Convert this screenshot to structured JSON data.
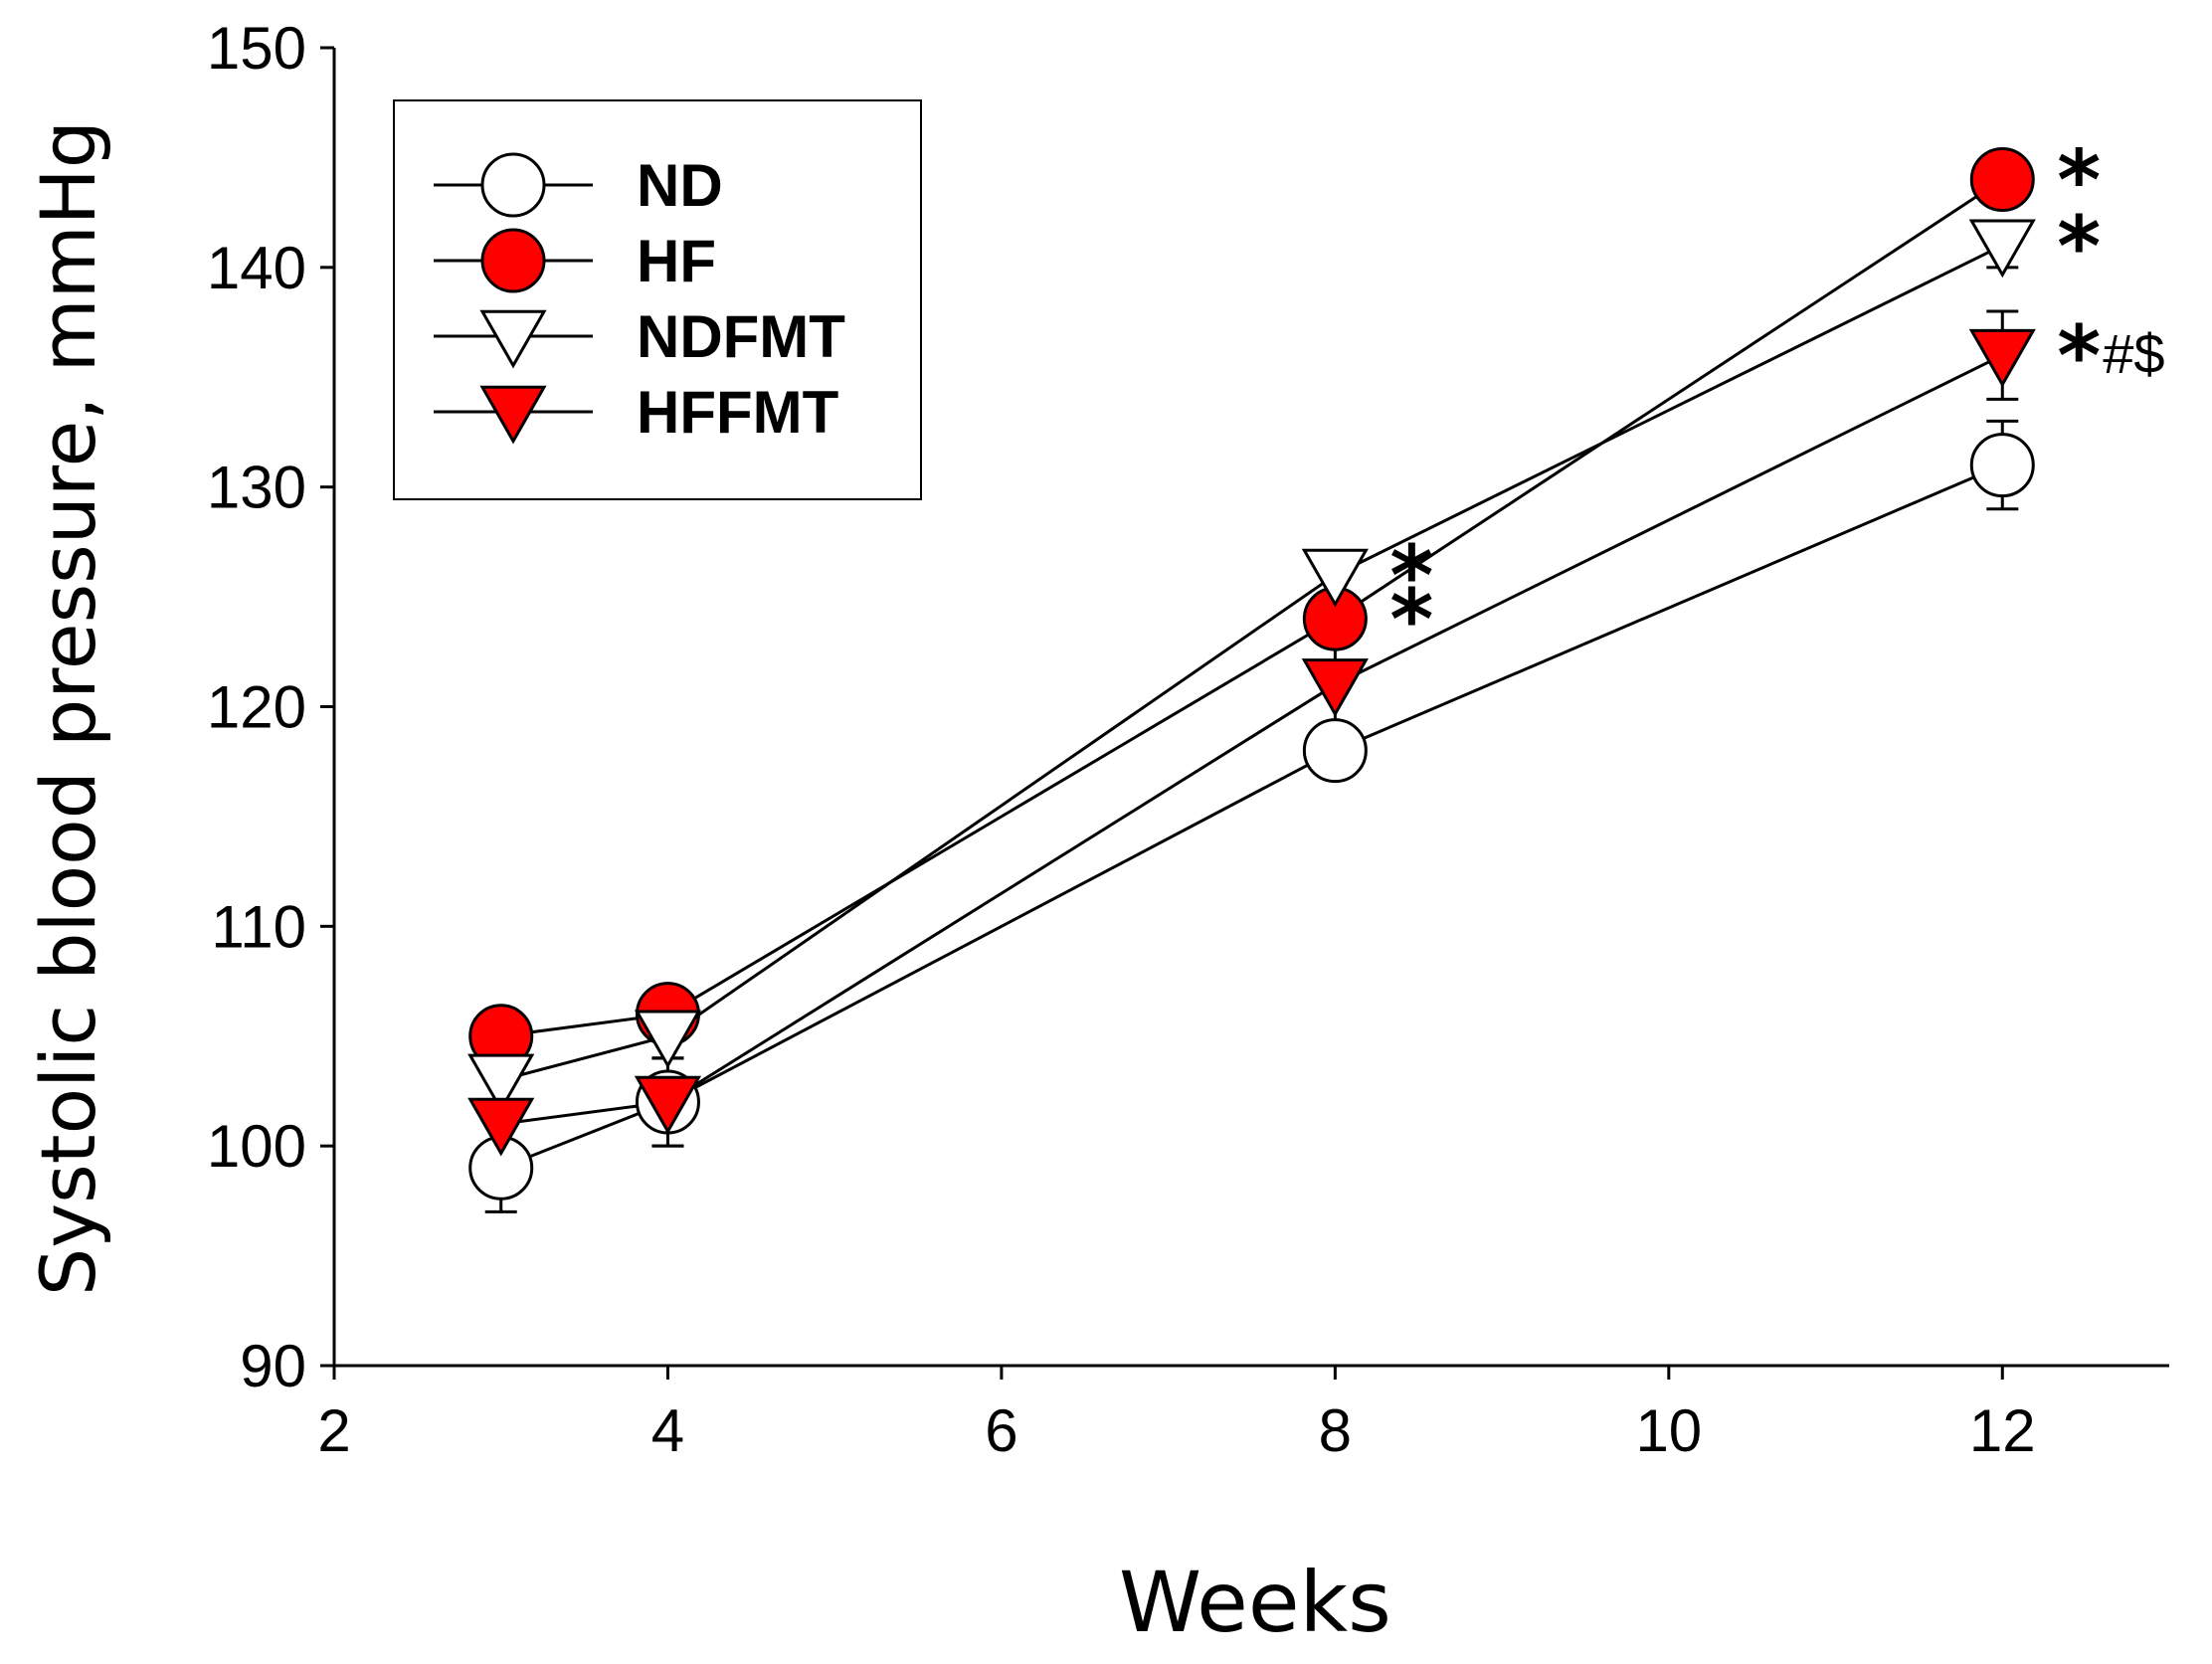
{
  "chart_data": {
    "type": "line",
    "title": "",
    "xlabel": "Weeks",
    "ylabel": "Systolic blood pressure, mmHg",
    "xlim": [
      2,
      13
    ],
    "ylim": [
      90,
      150
    ],
    "xticks": [
      2,
      4,
      6,
      8,
      10,
      12
    ],
    "yticks": [
      90,
      100,
      110,
      120,
      130,
      140,
      150
    ],
    "x": [
      3,
      4,
      8,
      12
    ],
    "legend_position": "top-left",
    "series": [
      {
        "name": "ND",
        "marker": "circle",
        "fill": "#ffffff",
        "values": [
          99,
          102,
          118,
          131
        ],
        "errors": [
          2,
          2,
          1,
          2
        ]
      },
      {
        "name": "HF",
        "marker": "circle",
        "fill": "#ff0000",
        "values": [
          105,
          106,
          124,
          144
        ],
        "errors": [
          1,
          1,
          1,
          1
        ]
      },
      {
        "name": "NDFMT",
        "marker": "triangle-down",
        "fill": "#ffffff",
        "values": [
          103,
          105,
          126,
          141
        ],
        "errors": [
          1,
          1,
          1,
          1
        ]
      },
      {
        "name": "HFFMT",
        "marker": "triangle-down",
        "fill": "#ff0000",
        "values": [
          101,
          102,
          121,
          136
        ],
        "errors": [
          1,
          2,
          2,
          2
        ]
      }
    ],
    "annotations": [
      {
        "x": 8,
        "y": 126,
        "star": "*",
        "extra": ""
      },
      {
        "x": 8,
        "y": 124,
        "star": "*",
        "extra": ""
      },
      {
        "x": 12,
        "y": 144,
        "star": "*",
        "extra": ""
      },
      {
        "x": 12,
        "y": 141,
        "star": "*",
        "extra": ""
      },
      {
        "x": 12,
        "y": 136,
        "star": "*",
        "extra": "#$"
      }
    ]
  }
}
